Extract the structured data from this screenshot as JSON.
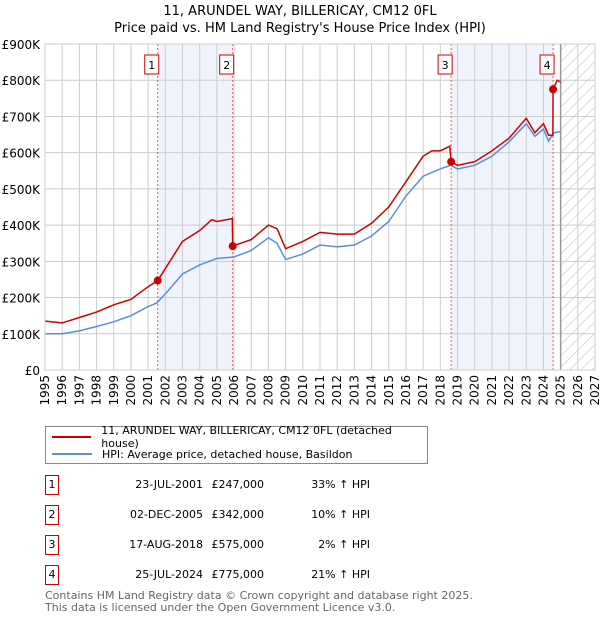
{
  "chart_data": {
    "type": "line",
    "title": "11, ARUNDEL WAY, BILLERICAY, CM12 0FL",
    "subtitle": "Price paid vs. HM Land Registry's House Price Index (HPI)",
    "xlim": [
      1995,
      2027
    ],
    "ylim": [
      0,
      900000
    ],
    "x_ticks": [
      "1995",
      "1996",
      "1997",
      "1998",
      "1999",
      "2000",
      "2001",
      "2002",
      "2003",
      "2004",
      "2005",
      "2006",
      "2007",
      "2008",
      "2009",
      "2010",
      "2011",
      "2012",
      "2013",
      "2014",
      "2015",
      "2016",
      "2017",
      "2018",
      "2019",
      "2020",
      "2021",
      "2022",
      "2023",
      "2024",
      "2025",
      "2026",
      "2027"
    ],
    "y_ticks": [
      {
        "v": 0,
        "label": "£0"
      },
      {
        "v": 100000,
        "label": "£100K"
      },
      {
        "v": 200000,
        "label": "£200K"
      },
      {
        "v": 300000,
        "label": "£300K"
      },
      {
        "v": 400000,
        "label": "£400K"
      },
      {
        "v": 500000,
        "label": "£500K"
      },
      {
        "v": 600000,
        "label": "£600K"
      },
      {
        "v": 700000,
        "label": "£700K"
      },
      {
        "v": 800000,
        "label": "£800K"
      },
      {
        "v": 900000,
        "label": "£900K"
      }
    ],
    "grid": true,
    "legend_position": "below",
    "forecast_start": 2025.0,
    "series": [
      {
        "name": "11, ARUNDEL WAY, BILLERICAY, CM12 0FL (detached house)",
        "color": "#cc0000",
        "points": [
          [
            1995,
            135
          ],
          [
            1996,
            130
          ],
          [
            1997,
            145
          ],
          [
            1998,
            160
          ],
          [
            1999,
            180
          ],
          [
            2000,
            195
          ],
          [
            2001,
            230
          ],
          [
            2001.56,
            247
          ],
          [
            2002,
            280
          ],
          [
            2003,
            355
          ],
          [
            2004,
            385
          ],
          [
            2004.7,
            415
          ],
          [
            2005,
            410
          ],
          [
            2005.9,
            418
          ],
          [
            2005.92,
            342
          ],
          [
            2007,
            360
          ],
          [
            2008,
            400
          ],
          [
            2008.5,
            390
          ],
          [
            2009,
            335
          ],
          [
            2010,
            355
          ],
          [
            2011,
            380
          ],
          [
            2012,
            375
          ],
          [
            2013,
            375
          ],
          [
            2014,
            405
          ],
          [
            2015,
            450
          ],
          [
            2016,
            520
          ],
          [
            2017,
            590
          ],
          [
            2017.5,
            605
          ],
          [
            2018,
            605
          ],
          [
            2018.55,
            618
          ],
          [
            2018.63,
            575
          ],
          [
            2019,
            565
          ],
          [
            2020,
            575
          ],
          [
            2021,
            605
          ],
          [
            2022,
            640
          ],
          [
            2023,
            695
          ],
          [
            2023.5,
            655
          ],
          [
            2024,
            680
          ],
          [
            2024.3,
            648
          ],
          [
            2024.55,
            648
          ],
          [
            2024.56,
            775
          ],
          [
            2024.8,
            800
          ],
          [
            2025,
            795
          ]
        ]
      },
      {
        "name": "HPI: Average price, detached house, Basildon",
        "color": "#5b8fd4",
        "points": [
          [
            1995,
            100
          ],
          [
            1996,
            100
          ],
          [
            1997,
            108
          ],
          [
            1998,
            120
          ],
          [
            1999,
            133
          ],
          [
            2000,
            150
          ],
          [
            2001,
            175
          ],
          [
            2001.5,
            185
          ],
          [
            2002,
            210
          ],
          [
            2003,
            265
          ],
          [
            2004,
            290
          ],
          [
            2005,
            308
          ],
          [
            2006,
            312
          ],
          [
            2007,
            330
          ],
          [
            2008,
            365
          ],
          [
            2008.5,
            350
          ],
          [
            2009,
            305
          ],
          [
            2010,
            320
          ],
          [
            2011,
            345
          ],
          [
            2012,
            340
          ],
          [
            2013,
            345
          ],
          [
            2014,
            370
          ],
          [
            2015,
            410
          ],
          [
            2016,
            480
          ],
          [
            2017,
            535
          ],
          [
            2018,
            555
          ],
          [
            2018.6,
            565
          ],
          [
            2019,
            555
          ],
          [
            2020,
            565
          ],
          [
            2021,
            590
          ],
          [
            2022,
            630
          ],
          [
            2023,
            680
          ],
          [
            2023.5,
            645
          ],
          [
            2024,
            665
          ],
          [
            2024.3,
            632
          ],
          [
            2024.6,
            655
          ],
          [
            2025,
            658
          ]
        ]
      }
    ],
    "sales": [
      {
        "n": "1",
        "x": 2001.56,
        "value": 247000,
        "date": "23-JUL-2001",
        "price": "£247,000",
        "hpi": "33% ↑ HPI"
      },
      {
        "n": "2",
        "x": 2005.92,
        "value": 342000,
        "date": "02-DEC-2005",
        "price": "£342,000",
        "hpi": "10% ↑ HPI"
      },
      {
        "n": "3",
        "x": 2018.63,
        "value": 575000,
        "date": "17-AUG-2018",
        "price": "£575,000",
        "hpi": "2% ↑ HPI"
      },
      {
        "n": "4",
        "x": 2024.56,
        "value": 775000,
        "date": "25-JUL-2024",
        "price": "£775,000",
        "hpi": "21% ↑ HPI"
      }
    ]
  },
  "footer": {
    "line1": "Contains HM Land Registry data © Crown copyright and database right 2025.",
    "line2": "This data is licensed under the Open Government Licence v3.0."
  }
}
